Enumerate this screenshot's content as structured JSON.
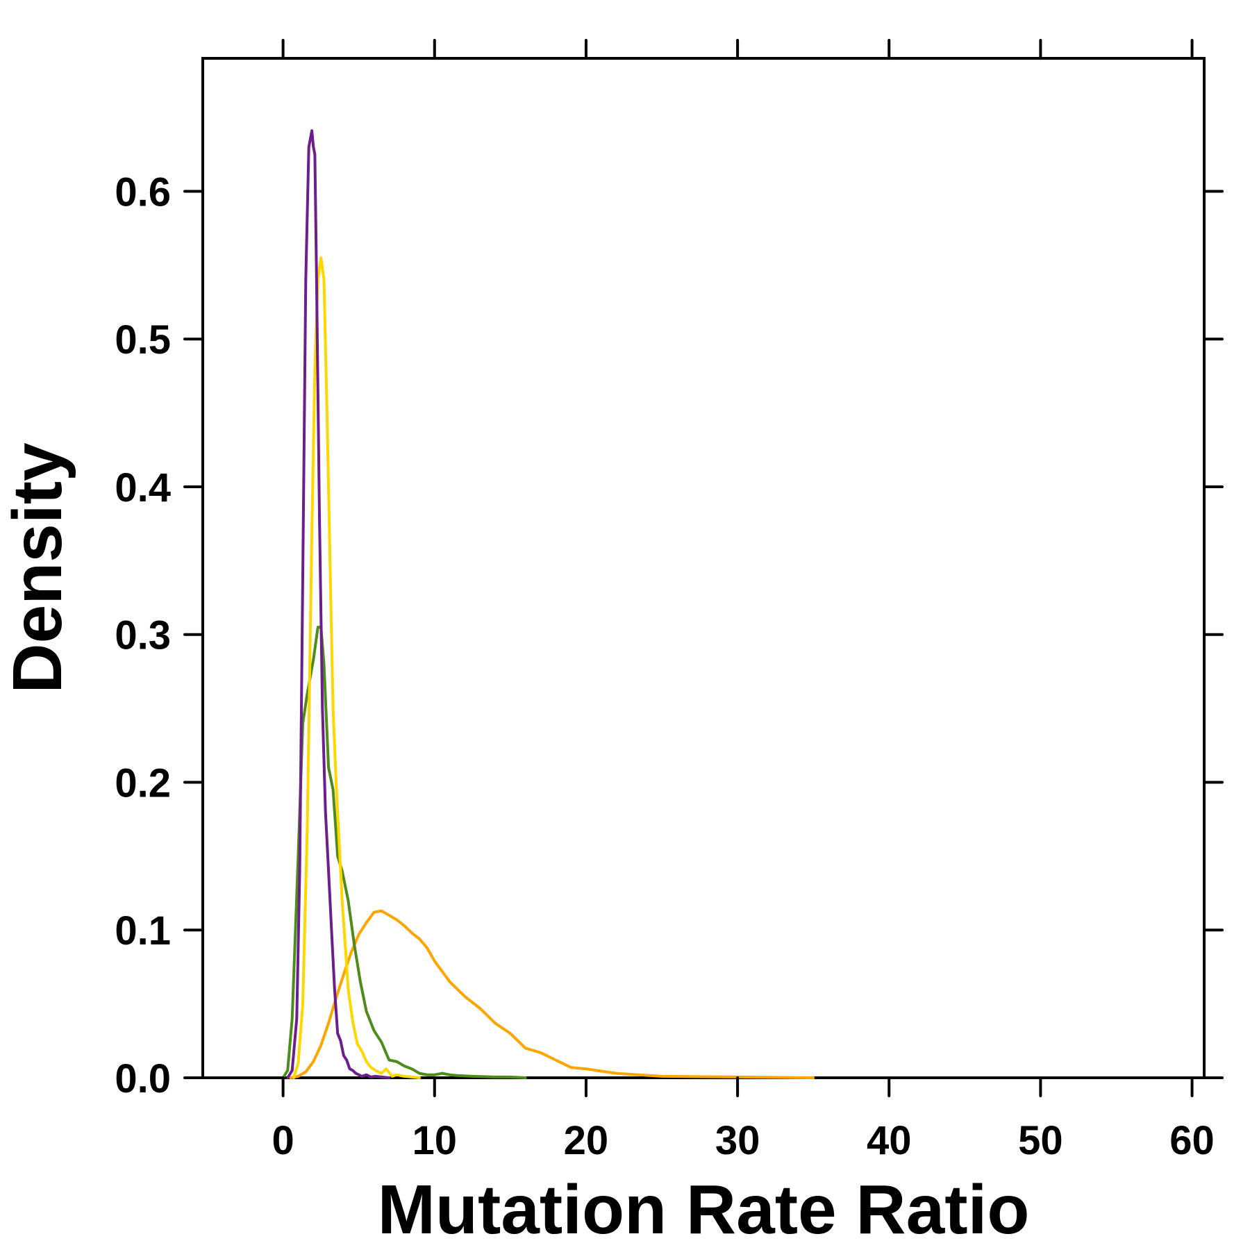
{
  "chart_data": {
    "type": "line",
    "title": "",
    "xlabel": "Mutation Rate Ratio",
    "ylabel": "Density",
    "xlim": [
      -5.3,
      60.8
    ],
    "ylim": [
      0,
      0.69
    ],
    "x_ticks": [
      0,
      10,
      20,
      30,
      40,
      50,
      60
    ],
    "x_tick_labels": [
      "0",
      "10",
      "20",
      "30",
      "40",
      "50",
      "60"
    ],
    "y_ticks": [
      0.0,
      0.1,
      0.2,
      0.3,
      0.4,
      0.5,
      0.6
    ],
    "y_tick_labels": [
      "0.0",
      "0.1",
      "0.2",
      "0.3",
      "0.4",
      "0.5",
      "0.6"
    ],
    "grid": false,
    "legend": "none",
    "series": [
      {
        "color": "#FFA500",
        "x": [
          0.5,
          1.0,
          1.5,
          2.0,
          2.5,
          3.0,
          3.5,
          4.0,
          4.5,
          5.0,
          5.5,
          6.0,
          6.5,
          7.0,
          7.5,
          8.0,
          8.5,
          9.0,
          9.5,
          10.0,
          11.0,
          12.0,
          13.0,
          14.0,
          15.0,
          16.0,
          17.0,
          18.0,
          19.0,
          20.0,
          22.0,
          25.0,
          30.0,
          35.0
        ],
        "y": [
          0.0,
          0.001,
          0.004,
          0.011,
          0.022,
          0.037,
          0.054,
          0.07,
          0.085,
          0.097,
          0.105,
          0.112,
          0.113,
          0.11,
          0.107,
          0.103,
          0.098,
          0.094,
          0.088,
          0.079,
          0.065,
          0.055,
          0.047,
          0.037,
          0.03,
          0.02,
          0.017,
          0.012,
          0.007,
          0.006,
          0.003,
          0.001,
          0.0005,
          0.0
        ]
      },
      {
        "color": "#4D8C1A",
        "x": [
          0.0,
          0.3,
          0.6,
          1.0,
          1.3,
          1.6,
          2.0,
          2.3,
          2.5,
          2.7,
          3.0,
          3.3,
          3.6,
          3.9,
          4.3,
          4.7,
          5.1,
          5.5,
          6.0,
          6.5,
          7.0,
          7.5,
          8.0,
          8.5,
          9.0,
          9.5,
          10.0,
          10.5,
          11.0,
          11.5,
          12.5,
          14.0,
          15.0,
          16.0
        ],
        "y": [
          0.0,
          0.005,
          0.04,
          0.15,
          0.24,
          0.26,
          0.283,
          0.305,
          0.305,
          0.28,
          0.21,
          0.195,
          0.15,
          0.14,
          0.12,
          0.09,
          0.065,
          0.045,
          0.032,
          0.024,
          0.012,
          0.011,
          0.008,
          0.006,
          0.003,
          0.002,
          0.002,
          0.003,
          0.002,
          0.0015,
          0.001,
          0.0005,
          0.0005,
          0.0
        ]
      },
      {
        "color": "#FFD700",
        "x": [
          0.7,
          1.0,
          1.3,
          1.6,
          1.9,
          2.1,
          2.3,
          2.5,
          2.7,
          2.9,
          3.1,
          3.3,
          3.5,
          3.7,
          3.9,
          4.1,
          4.3,
          4.6,
          4.9,
          5.2,
          5.5,
          5.8,
          6.1,
          6.5,
          6.8,
          7.2,
          7.5,
          8.0,
          8.5,
          9.0
        ],
        "y": [
          0.0,
          0.01,
          0.05,
          0.17,
          0.37,
          0.48,
          0.54,
          0.555,
          0.54,
          0.45,
          0.35,
          0.25,
          0.2,
          0.16,
          0.12,
          0.09,
          0.06,
          0.038,
          0.023,
          0.018,
          0.011,
          0.007,
          0.005,
          0.003,
          0.006,
          0.001,
          0.002,
          0.001,
          0.0005,
          0.0
        ]
      },
      {
        "color": "#6B1E8C",
        "x": [
          0.3,
          0.6,
          0.9,
          1.1,
          1.3,
          1.5,
          1.7,
          1.9,
          2.0,
          2.1,
          2.2,
          2.4,
          2.6,
          2.8,
          3.0,
          3.2,
          3.4,
          3.6,
          3.8,
          4.0,
          4.2,
          4.4,
          4.6,
          4.8,
          5.0,
          5.2,
          5.5,
          5.8,
          6.1,
          6.5,
          7.0
        ],
        "y": [
          0.0,
          0.005,
          0.04,
          0.14,
          0.34,
          0.54,
          0.63,
          0.641,
          0.63,
          0.625,
          0.55,
          0.38,
          0.25,
          0.18,
          0.14,
          0.1,
          0.06,
          0.03,
          0.025,
          0.015,
          0.012,
          0.006,
          0.005,
          0.003,
          0.002,
          0.001,
          0.002,
          0.0005,
          0.001,
          0.0005,
          0.0
        ]
      }
    ]
  }
}
